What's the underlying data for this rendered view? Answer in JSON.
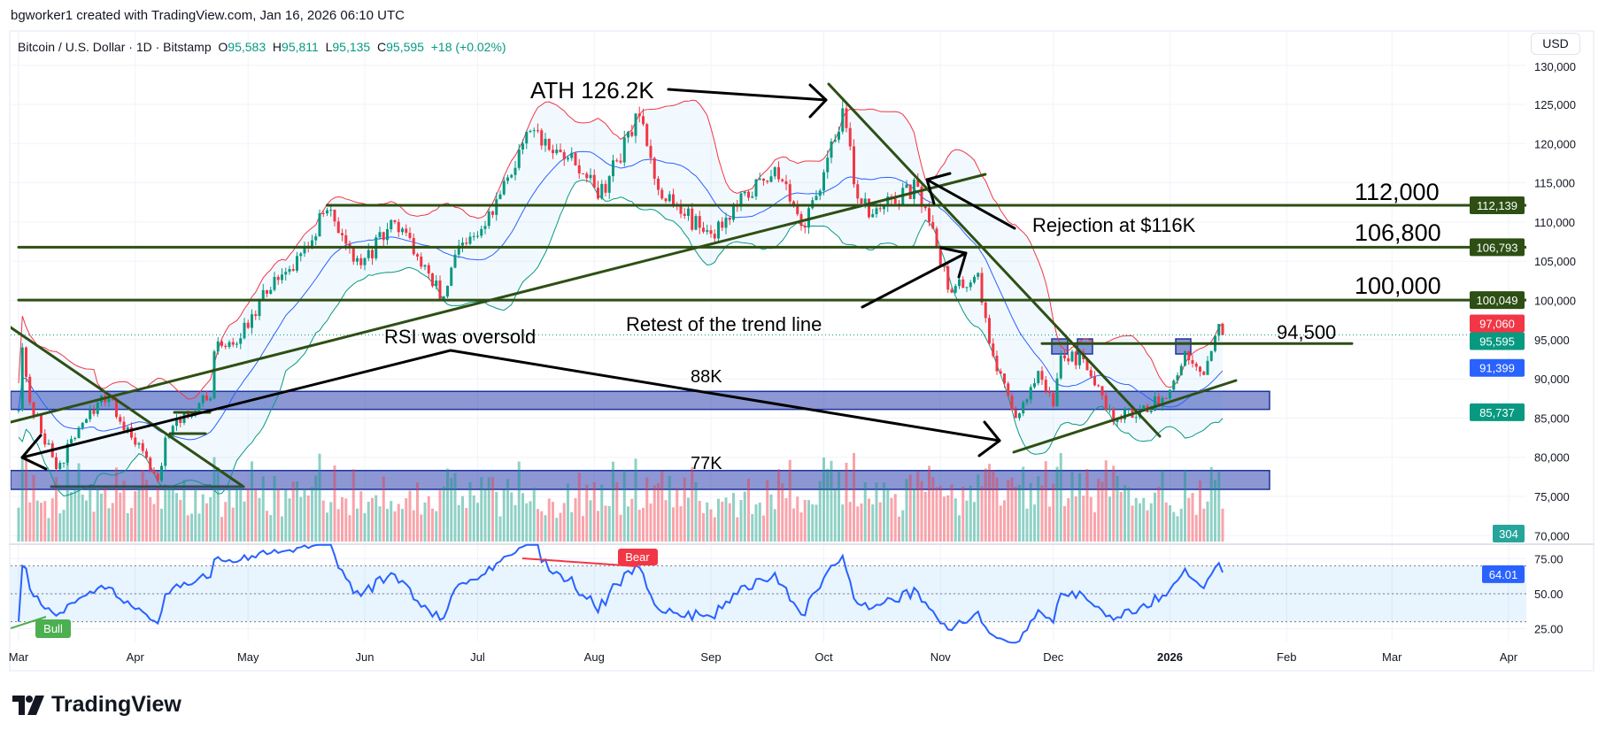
{
  "header": {
    "attribution": "bgworker1 created with TradingView.com, Jan 16, 2026 06:10 UTC"
  },
  "legend": {
    "symbol": "Bitcoin / U.S. Dollar · 1D · Bitstamp",
    "o_label": "O",
    "o": "95,583",
    "h_label": "H",
    "h": "95,811",
    "l_label": "L",
    "l": "95,135",
    "c_label": "C",
    "c": "95,595",
    "change": "+18 (+0.02%)"
  },
  "currency_button": "USD",
  "logo": {
    "text": "TradingView"
  },
  "colors": {
    "up": "#089981",
    "down": "#f23645",
    "basis": "#2962ff",
    "level": "#2d4f14",
    "zone": "#3f51b5",
    "bull": "#4caf50"
  },
  "price_tags": [
    {
      "value": 112139,
      "label": "112,139",
      "color": "#2d4f14"
    },
    {
      "value": 106793,
      "label": "106,793",
      "color": "#2d4f14"
    },
    {
      "value": 100049,
      "label": "100,049",
      "color": "#2d4f14"
    },
    {
      "value": 97060,
      "label": "97,060",
      "color": "#f23645"
    },
    {
      "value": 95595,
      "label": "95,595",
      "color": "#089981"
    },
    {
      "value": 91399,
      "label": "91,399",
      "color": "#2962ff"
    },
    {
      "value": 85737,
      "label": "85,737",
      "color": "#089981"
    }
  ],
  "volume_tag": {
    "label": "304",
    "color": "#26a69a"
  },
  "rsi_tag": {
    "value": 64.01,
    "label": "64.01",
    "color": "#2962ff"
  },
  "annotations": {
    "ath": "ATH 126.2K",
    "rejection": "Rejection at $116K",
    "retest": "Retest of the trend line",
    "oversold": "RSI was oversold",
    "zone_88k": "88K",
    "zone_77k": "77K",
    "level_112": "112,000",
    "level_106": "106,800",
    "level_100": "100,000",
    "level_94": "94,500",
    "bear": "Bear",
    "bull": "Bull"
  },
  "chart_data": {
    "type": "candlestick",
    "title": "Bitcoin / U.S. Dollar · 1D · Bitstamp",
    "start_date": "2025-03-01",
    "last_date": "2026-01-15",
    "ylim": [
      68000,
      131000
    ],
    "price_ticks": [
      {
        "value": 130000,
        "label": "130,000"
      },
      {
        "value": 125000,
        "label": "125,000"
      },
      {
        "value": 120000,
        "label": "120,000"
      },
      {
        "value": 115000,
        "label": "115,000"
      },
      {
        "value": 110000,
        "label": "110,000"
      },
      {
        "value": 105000,
        "label": "105,000"
      },
      {
        "value": 100000,
        "label": "100,000"
      },
      {
        "value": 95000,
        "label": "95,000"
      },
      {
        "value": 90000,
        "label": "90,000"
      },
      {
        "value": 85000,
        "label": "85,000"
      },
      {
        "value": 80000,
        "label": "80,000"
      },
      {
        "value": 75000,
        "label": "75,000"
      },
      {
        "value": 70000,
        "label": "70,000"
      }
    ],
    "rsi_ticks": [
      {
        "value": 75,
        "label": "75.00"
      },
      {
        "value": 50,
        "label": "50.00"
      },
      {
        "value": 25,
        "label": "25.00"
      }
    ],
    "rsi_bands": [
      70,
      50,
      30
    ],
    "time_labels": [
      {
        "date": "2025-03-01",
        "label": "Mar"
      },
      {
        "date": "2025-04-01",
        "label": "Apr"
      },
      {
        "date": "2025-05-01",
        "label": "May"
      },
      {
        "date": "2025-06-01",
        "label": "Jun"
      },
      {
        "date": "2025-07-01",
        "label": "Jul"
      },
      {
        "date": "2025-08-01",
        "label": "Aug"
      },
      {
        "date": "2025-09-01",
        "label": "Sep"
      },
      {
        "date": "2025-10-01",
        "label": "Oct"
      },
      {
        "date": "2025-11-01",
        "label": "Nov"
      },
      {
        "date": "2025-12-01",
        "label": "Dec"
      },
      {
        "date": "2026-01-01",
        "label": "2026",
        "bold": true
      },
      {
        "date": "2026-02-01",
        "label": "Feb"
      },
      {
        "date": "2026-03-01",
        "label": "Mar"
      },
      {
        "date": "2026-04-01",
        "label": "Apr"
      }
    ],
    "key_closes": [
      [
        "2025-03-01",
        86000
      ],
      [
        "2025-03-02",
        94000
      ],
      [
        "2025-03-04",
        87000
      ],
      [
        "2025-03-10",
        80000
      ],
      [
        "2025-03-11",
        78500
      ],
      [
        "2025-03-20",
        86000
      ],
      [
        "2025-03-25",
        87500
      ],
      [
        "2025-03-31",
        82500
      ],
      [
        "2025-04-07",
        77000
      ],
      [
        "2025-04-09",
        82500
      ],
      [
        "2025-04-12",
        85000
      ],
      [
        "2025-04-21",
        87500
      ],
      [
        "2025-04-22",
        93500
      ],
      [
        "2025-05-01",
        96500
      ],
      [
        "2025-05-08",
        103000
      ],
      [
        "2025-05-12",
        104000
      ],
      [
        "2025-05-22",
        111500
      ],
      [
        "2025-05-31",
        104500
      ],
      [
        "2025-06-09",
        110000
      ],
      [
        "2025-06-17",
        104500
      ],
      [
        "2025-06-22",
        100500
      ],
      [
        "2025-06-26",
        107000
      ],
      [
        "2025-07-03",
        109500
      ],
      [
        "2025-07-10",
        116000
      ],
      [
        "2025-07-14",
        121500
      ],
      [
        "2025-07-31",
        116000
      ],
      [
        "2025-08-02",
        113000
      ],
      [
        "2025-08-13",
        123500
      ],
      [
        "2025-08-19",
        113000
      ],
      [
        "2025-09-01",
        108500
      ],
      [
        "2025-09-18",
        117000
      ],
      [
        "2025-09-25",
        109500
      ],
      [
        "2025-09-30",
        114000
      ],
      [
        "2025-10-06",
        124500
      ],
      [
        "2025-10-10",
        113000
      ],
      [
        "2025-10-14",
        111000
      ],
      [
        "2025-10-26",
        114500
      ],
      [
        "2025-10-29",
        110000
      ],
      [
        "2025-11-04",
        101000
      ],
      [
        "2025-11-11",
        103500
      ],
      [
        "2025-11-14",
        94500
      ],
      [
        "2025-11-21",
        85000
      ],
      [
        "2025-11-27",
        91000
      ],
      [
        "2025-12-01",
        86500
      ],
      [
        "2025-12-03",
        93000
      ],
      [
        "2025-12-09",
        92500
      ],
      [
        "2025-12-15",
        86000
      ],
      [
        "2025-12-18",
        85000
      ],
      [
        "2025-12-31",
        87500
      ],
      [
        "2026-01-05",
        93500
      ],
      [
        "2026-01-10",
        90500
      ],
      [
        "2026-01-13",
        95500
      ],
      [
        "2026-01-14",
        97000
      ],
      [
        "2026-01-15",
        95595
      ]
    ],
    "horizontal_levels": [
      {
        "price": 112139,
        "from": "2025-05-22"
      },
      {
        "price": 106793,
        "from": "2025-03-01"
      },
      {
        "price": 100049,
        "from": "2025-03-01"
      },
      {
        "price": 94500,
        "from": "2025-11-28"
      }
    ],
    "zones": [
      {
        "name": "88K",
        "top": 88400,
        "bottom": 86100
      },
      {
        "name": "77K",
        "top": 78300,
        "bottom": 75900
      }
    ],
    "indicators": {
      "bollinger": {
        "period": 20,
        "upper": 97060,
        "basis": 91399,
        "lower": 85737
      },
      "rsi": {
        "period": 14,
        "value": 64.01
      },
      "volume": 304
    }
  }
}
